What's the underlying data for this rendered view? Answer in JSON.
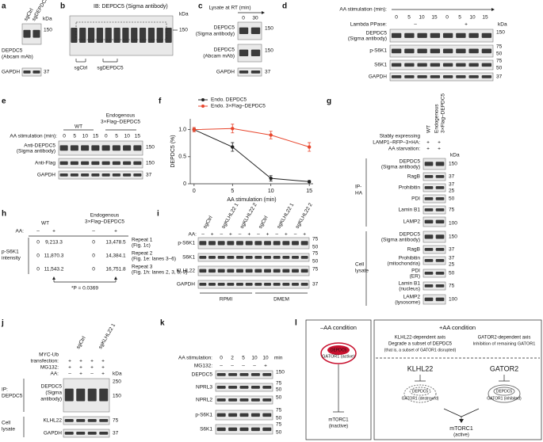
{
  "a": {
    "letter": "a",
    "lanes": [
      "sgCtrl",
      "sgDEPDC5"
    ],
    "kda": "kDa",
    "rows": [
      "DEPDC5",
      "(Abcam mAb)",
      "GAPDH"
    ],
    "markers": [
      "150",
      "37"
    ]
  },
  "b": {
    "letter": "b",
    "title": "IB: DEPDC5 (Sigma antibody)",
    "kda": "kDa",
    "markers": [
      "150"
    ],
    "lanes": [
      "sgCtrl",
      "sgDEPDC5"
    ]
  },
  "c": {
    "letter": "c",
    "title": "Lysate at RT (min)",
    "lanes": [
      "0",
      "30"
    ],
    "rows": [
      "DEPDC5",
      "(Sigma antibody)",
      "DEPDC5",
      "(Abcam mAb)",
      "GAPDH"
    ],
    "markers": [
      "150",
      "150",
      "37"
    ]
  },
  "d": {
    "letter": "d",
    "lanes_label": "AA stimulation (min):",
    "lanes": [
      "0",
      "5",
      "10",
      "15",
      "0",
      "5",
      "10",
      "15"
    ],
    "ppase_label": "Lambda PPase:",
    "ppase": [
      "–",
      "+"
    ],
    "kda": "kDa",
    "rows": [
      "DEPDC5",
      "(Sigma antibody)",
      "p-S6K1",
      "S6K1",
      "GAPDH"
    ],
    "markers": [
      "150",
      "75",
      "50",
      "75",
      "50",
      "37"
    ]
  },
  "e": {
    "letter": "e",
    "lanes_label": "AA stimulation (min):",
    "groups": [
      "WT",
      "Endogenous",
      "3×Flag–DEPDC5"
    ],
    "lanes": [
      "0",
      "5",
      "10",
      "15",
      "0",
      "5",
      "10",
      "15"
    ],
    "rows": [
      "Anti-DEPDC5",
      "(Sigma antibody)",
      "Anti-Flag",
      "GAPDH"
    ],
    "markers": [
      "150",
      "150",
      "37"
    ]
  },
  "f": {
    "letter": "f",
    "type": "line",
    "x_label": "AA stimulation (min)",
    "y_label": "DEPDC5 (%)",
    "x": [
      0,
      5,
      10,
      15
    ],
    "xlim": [
      -0.5,
      15.5
    ],
    "xticks": [
      0,
      5,
      10,
      15
    ],
    "ylim": [
      0,
      1.2
    ],
    "yticks": [
      0,
      0.5,
      {
        "value": 1,
        "label": "1.0"
      }
    ],
    "series": [
      {
        "name": "Endo. DEPDC5",
        "color": "#222222",
        "values": [
          1,
          0.68,
          0.1,
          0.04
        ],
        "errors": [
          0.02,
          0.08,
          0.05,
          0.02
        ]
      },
      {
        "name": "Endo. 3×Flag–DEPDC5",
        "color": "#e8452c",
        "values": [
          1,
          1.02,
          0.9,
          0.68
        ],
        "errors": [
          0.04,
          0.08,
          0.07,
          0.08
        ]
      }
    ]
  },
  "g": {
    "letter": "g",
    "columns": [
      "WT",
      "Endogenous",
      "3×Flag–DEPDC5"
    ],
    "conditions": [
      "Stably expressing",
      "LAMP1–RFP–3×HA:",
      "AA starvation:"
    ],
    "signs": [
      "+",
      "+",
      "+",
      "+"
    ],
    "kda": "kDa",
    "ip_group": [
      "IP-",
      "HA"
    ],
    "ip_rows": [
      "DEPDC5",
      "(Sigma antibody)",
      "RagB",
      "Prohibitin",
      "PDI",
      "Lamin B1",
      "LAMP2"
    ],
    "ip_markers": [
      "150",
      "37",
      "37",
      "25",
      "50",
      "75",
      "100"
    ],
    "lysate_group": [
      "Cell",
      "lysate"
    ],
    "lysate_rows": [
      "DEPDC5",
      "(Sigma antibody)",
      "RagB",
      "Prohibitin",
      "(mitochondria)",
      "PDI",
      "(ER)",
      "Lamin B1",
      "(nucleus)",
      "LAMP2",
      "(lysosome)"
    ],
    "lysate_markers": [
      "150",
      "37",
      "37",
      "25",
      "50",
      "75",
      "100"
    ]
  },
  "h": {
    "letter": "h",
    "groups": [
      "WT",
      "Endogenous",
      "3×Flag–DEPDC5"
    ],
    "aa_label": "AA:",
    "aa": [
      "–",
      "+",
      "–",
      "+"
    ],
    "row_label": [
      "p-S6K1",
      "intensity"
    ],
    "rows": [
      [
        "0",
        "9,213.3",
        "0",
        "13,478.5"
      ],
      [
        "0",
        "11,870.3",
        "0",
        "14,384.1"
      ],
      [
        "0",
        "11,543.2",
        "0",
        "16,751.8"
      ]
    ],
    "repeats": [
      [
        "Repeat 1",
        "(Fig. 1c)"
      ],
      [
        "Repeat 2",
        "(Fig. 1e: lanes 3–6)"
      ],
      [
        "Repeat 3",
        "(Fig. 1h: lanes 2, 3, 8, 9)"
      ]
    ],
    "stat": "*P = 0.0369"
  },
  "i": {
    "letter": "i",
    "lanes": [
      "sgCtrl",
      "sgKLHL22 1",
      "sgKLHL22 2",
      "sgCtrl",
      "sgKLHL22 1",
      "sgKLHL22 2"
    ],
    "aa_label": "AA:",
    "aa": [
      "–",
      "+",
      "–",
      "+",
      "–",
      "+",
      "–",
      "+",
      "–",
      "+",
      "–",
      "+"
    ],
    "rows": [
      "p-S6K1",
      "S6K1",
      "KLHL22",
      "GAPDH"
    ],
    "markers": [
      "75",
      "50",
      "75",
      "50",
      "75",
      "37"
    ],
    "media": [
      "RPMI",
      "DMEM"
    ]
  },
  "j": {
    "letter": "j",
    "lanes": [
      "sgCtrl",
      "sgKLHL22 1"
    ],
    "conditions": [
      "MYC-Ub",
      "transfection:",
      "MG132:",
      "AA:"
    ],
    "transfection": [
      "+",
      "+",
      "+",
      "+"
    ],
    "mg132": [
      "+",
      "+",
      "+",
      "+"
    ],
    "aa": [
      "–",
      "+",
      "–",
      "+"
    ],
    "ip_label": [
      "IP:",
      "DEPDC5"
    ],
    "ip_rows": [
      "DEPDC5",
      "(Sigma",
      "antibody)"
    ],
    "lysate_label": [
      "Cell",
      "lysate"
    ],
    "lysate_rows": [
      "KLHL22",
      "GAPDH"
    ],
    "kda": "kDa",
    "markers": [
      "250",
      "150",
      "75",
      "37"
    ]
  },
  "k": {
    "letter": "k",
    "aa_label": "AA stimulation:",
    "aa": [
      "0",
      "2",
      "5",
      "10",
      "10"
    ],
    "unit": "min",
    "mg_label": "MG132:",
    "mg": [
      "–",
      "–",
      "–",
      "–",
      "+"
    ],
    "rows": [
      "DEPDC5",
      "NPRL3",
      "NPRL2",
      "p-S6K1",
      "S6K1"
    ],
    "markers": [
      "150",
      "75",
      "50",
      "50",
      "75",
      "50",
      "75",
      "50"
    ]
  },
  "l": {
    "letter": "l",
    "minus_title": "–AA condition",
    "minus_protein": "DEPDC5",
    "minus_complex": "GATOR1 (active)",
    "minus_target": [
      "mTORC1",
      "(inactive)"
    ],
    "plus_title": "+AA condition",
    "axis1": [
      "KLHL22-dependent axis",
      "Degrade a subset of DEPDC5",
      "(that is, a subset of GATOR1 disrupted)"
    ],
    "axis2": [
      "GATOR2-dependent axis",
      "Inhibition of remaining GATOR1"
    ],
    "regulator1": "KLHL22",
    "regulator2": "GATOR2",
    "protein1": "DEPDC5",
    "complex1": "GATOR1 (destroyed)",
    "protein2": "DEPDC5",
    "complex2": "GATOR1 (inhibited)",
    "plus_target": [
      "mTORC1",
      "(active)"
    ]
  }
}
